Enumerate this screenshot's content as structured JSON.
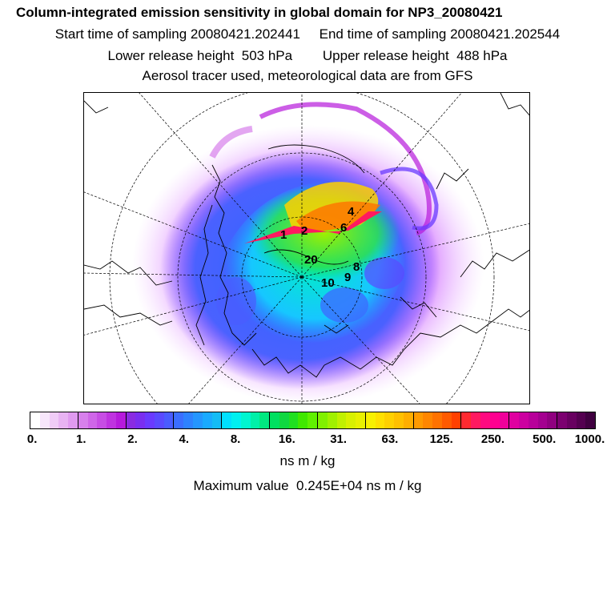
{
  "header": {
    "title": "Column-integrated emission sensitivity in global domain for NP3_20080421",
    "sampling": "Start time of sampling 20080421.202441     End time of sampling 20080421.202544",
    "release": "Lower release height  503 hPa        Upper release height  488 hPa",
    "tracer": "Aerosol tracer used, meteorological data are from GFS"
  },
  "map": {
    "projection": "polar stereographic (Arctic)",
    "release_markers": [
      "1",
      "2",
      "4",
      "6",
      "8",
      "9",
      "10",
      "20"
    ]
  },
  "colorbar": {
    "tick_labels": [
      "0.",
      "1.",
      "2.",
      "4.",
      "8.",
      "16.",
      "31.",
      "63.",
      "125.",
      "250.",
      "500.",
      "1000."
    ],
    "colors": [
      "#ffffff",
      "#f7e6fb",
      "#f0ccf7",
      "#e8b3f3",
      "#e09af0",
      "#d780ec",
      "#cf66e8",
      "#c74de4",
      "#bf33e0",
      "#b61adc",
      "#8a2be2",
      "#7a2ef0",
      "#6a3aff",
      "#5a4aff",
      "#4a5cff",
      "#3b6eff",
      "#2e82ff",
      "#2496ff",
      "#1aaaff",
      "#14bcf5",
      "#00e0ff",
      "#00f0f0",
      "#00f5d0",
      "#00f0a8",
      "#00e880",
      "#00e060",
      "#10d840",
      "#20e020",
      "#40e800",
      "#60f000",
      "#80f000",
      "#a0f000",
      "#c0f000",
      "#d8f000",
      "#e8f000",
      "#f8f000",
      "#ffe000",
      "#ffd000",
      "#ffc000",
      "#ffae00",
      "#ff9a00",
      "#ff8600",
      "#ff7200",
      "#ff5a00",
      "#ff4000",
      "#ff2a30",
      "#ff1a60",
      "#ff0a80",
      "#ff0090",
      "#f0009a",
      "#e000a0",
      "#cc00a0",
      "#b8009a",
      "#a40090",
      "#900080",
      "#7c0070",
      "#680060",
      "#540050",
      "#400040"
    ],
    "unit": "ns m / kg"
  },
  "footer": {
    "max_value": "Maximum value  0.245E+04 ns m / kg"
  }
}
